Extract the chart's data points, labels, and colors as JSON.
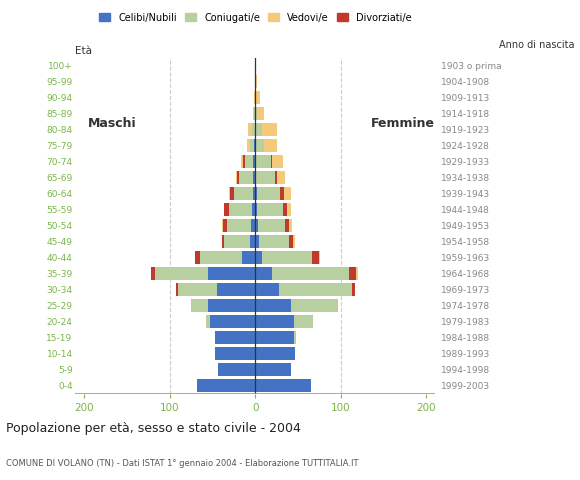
{
  "age_groups": [
    "0-4",
    "5-9",
    "10-14",
    "15-19",
    "20-24",
    "25-29",
    "30-34",
    "35-39",
    "40-44",
    "45-49",
    "50-54",
    "55-59",
    "60-64",
    "65-69",
    "70-74",
    "75-79",
    "80-84",
    "85-89",
    "90-94",
    "95-99",
    "100+"
  ],
  "birth_years": [
    "1999-2003",
    "1994-1998",
    "1989-1993",
    "1984-1988",
    "1979-1983",
    "1974-1978",
    "1969-1973",
    "1964-1968",
    "1959-1963",
    "1954-1958",
    "1949-1953",
    "1944-1948",
    "1939-1943",
    "1934-1938",
    "1929-1933",
    "1924-1928",
    "1919-1923",
    "1914-1918",
    "1909-1913",
    "1904-1908",
    "1903 o prima"
  ],
  "colors": {
    "celibi": "#4472c4",
    "coniugati": "#b8cfa0",
    "vedovi": "#f5c97a",
    "divorziati": "#c0392b"
  },
  "males": {
    "celibi": [
      68,
      43,
      47,
      47,
      53,
      55,
      45,
      55,
      15,
      6,
      5,
      4,
      3,
      2,
      2,
      1,
      0,
      0,
      0,
      0,
      0
    ],
    "coniugati": [
      0,
      0,
      0,
      0,
      5,
      20,
      45,
      62,
      50,
      30,
      28,
      27,
      22,
      17,
      10,
      5,
      4,
      1,
      0,
      0,
      0
    ],
    "vedovi": [
      0,
      0,
      0,
      0,
      0,
      0,
      0,
      0,
      0,
      0,
      1,
      1,
      2,
      2,
      3,
      3,
      4,
      2,
      1,
      0,
      0
    ],
    "divorziati": [
      0,
      0,
      0,
      0,
      0,
      0,
      2,
      5,
      5,
      3,
      5,
      5,
      4,
      2,
      2,
      0,
      0,
      0,
      0,
      0,
      0
    ]
  },
  "females": {
    "celibi": [
      65,
      42,
      47,
      45,
      45,
      42,
      28,
      20,
      8,
      4,
      3,
      2,
      2,
      1,
      1,
      0,
      0,
      0,
      0,
      0,
      0
    ],
    "coniugati": [
      0,
      0,
      0,
      3,
      22,
      55,
      85,
      90,
      58,
      35,
      32,
      30,
      27,
      22,
      18,
      10,
      8,
      2,
      1,
      0,
      0
    ],
    "vedovi": [
      0,
      0,
      0,
      0,
      0,
      0,
      0,
      2,
      2,
      2,
      3,
      5,
      8,
      10,
      12,
      15,
      18,
      8,
      5,
      2,
      0
    ],
    "divorziati": [
      0,
      0,
      0,
      0,
      0,
      0,
      4,
      8,
      8,
      5,
      5,
      5,
      5,
      2,
      1,
      0,
      0,
      0,
      0,
      0,
      0
    ]
  },
  "xlim": 210,
  "title": "Popolazione per età, sesso e stato civile - 2004",
  "subtitle": "COMUNE DI VOLANO (TN) - Dati ISTAT 1° gennaio 2004 - Elaborazione TUTTITALIA.IT",
  "ylabel_left": "Età",
  "ylabel_right": "Anno di nascita",
  "label_maschi": "Maschi",
  "label_femmine": "Femmine",
  "legend_labels": [
    "Celibi/Nubili",
    "Coniugati/e",
    "Vedovi/e",
    "Divorziati/e"
  ],
  "bg_color": "#ffffff",
  "grid_color": "#cccccc",
  "axis_color": "#7ab648",
  "center_line_color": "#333333",
  "label_color": "#333333",
  "birth_year_color": "#888888",
  "title_color": "#222222",
  "subtitle_color": "#555555"
}
